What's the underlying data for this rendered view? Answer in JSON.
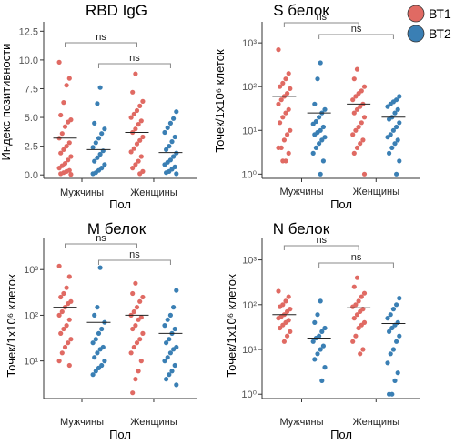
{
  "legend": [
    {
      "label": "ВТ1",
      "color": "#e06a63"
    },
    {
      "label": "ВТ2",
      "color": "#3a7fb4"
    }
  ],
  "chart_data": [
    {
      "type": "scatter",
      "title": "RBD IgG",
      "ylabel": "Индекс позитивности",
      "xlabel": "Пол",
      "yscale": "linear",
      "ylim": [
        -0.3,
        13
      ],
      "yticks": [
        0.0,
        2.5,
        5.0,
        7.5,
        10.0,
        12.5
      ],
      "ytick_labels": [
        "0.0",
        "2.5",
        "5.0",
        "7.5",
        "10.0",
        "12.5"
      ],
      "categories": [
        "Мужчины",
        "Женщины"
      ],
      "series": [
        {
          "name": "ВТ1",
          "values": [
            [
              9.8,
              8.4,
              7.8,
              6.3,
              5.2,
              4.8,
              4.6,
              4.2,
              3.6,
              3.2,
              2.8,
              2.5,
              2.2,
              1.9,
              1.6,
              1.3,
              1.0,
              0.8,
              0.6,
              0.4,
              0.3,
              0.2,
              0.1,
              0.05
            ],
            [
              8.8,
              7.2,
              6.4,
              6.0,
              5.6,
              5.3,
              5.0,
              4.7,
              4.4,
              4.0,
              3.7,
              3.3,
              3.0,
              2.7,
              2.3,
              2.0,
              1.6,
              1.2,
              0.9,
              0.6,
              0.3,
              0.1
            ]
          ]
        },
        {
          "name": "ВТ2",
          "values": [
            [
              7.6,
              6.2,
              4.5,
              4.0,
              3.6,
              3.2,
              2.8,
              2.4,
              2.1,
              1.8,
              1.5,
              1.2,
              0.9,
              0.6,
              0.4,
              0.2,
              0.1
            ],
            [
              5.5,
              4.9,
              4.5,
              4.1,
              3.7,
              3.3,
              2.9,
              2.5,
              2.2,
              1.9,
              1.6,
              1.3,
              1.1,
              0.9,
              0.7,
              0.5,
              0.3,
              0.2,
              0.1
            ]
          ]
        }
      ],
      "medians": [
        [
          3.2,
          2.2
        ],
        [
          3.7,
          1.95
        ]
      ],
      "annotations": [
        "ns",
        "ns"
      ]
    },
    {
      "type": "scatter",
      "title": "S белок",
      "ylabel": "Точек/1x10⁶ клеток",
      "xlabel": "Пол",
      "yscale": "log",
      "ylim": [
        0.8,
        2500
      ],
      "yticks": [
        1,
        10,
        100,
        1000
      ],
      "ytick_labels": [
        "10⁰",
        "10¹",
        "10²",
        "10³"
      ],
      "categories": [
        "Мужчины",
        "Женщины"
      ],
      "series": [
        {
          "name": "ВТ1",
          "values": [
            [
              700,
              200,
              150,
              120,
              100,
              90,
              70,
              60,
              50,
              40,
              30,
              25,
              20,
              15,
              10,
              8,
              6,
              4,
              4,
              3,
              2,
              2
            ],
            [
              250,
              150,
              100,
              80,
              70,
              60,
              50,
              40,
              35,
              30,
              25,
              20,
              15,
              12,
              10,
              8,
              6,
              5,
              4,
              3,
              1
            ]
          ]
        },
        {
          "name": "ВТ2",
          "values": [
            [
              350,
              150,
              40,
              30,
              25,
              20,
              16,
              14,
              12,
              10,
              9,
              8,
              7,
              6,
              5,
              4,
              3,
              2,
              1
            ],
            [
              60,
              50,
              45,
              40,
              35,
              30,
              25,
              20,
              18,
              15,
              12,
              10,
              8,
              7,
              6,
              5,
              4,
              3,
              2,
              1
            ]
          ]
        }
      ],
      "medians": [
        [
          60,
          25
        ],
        [
          40,
          20
        ]
      ],
      "annotations": [
        "ns",
        "ns"
      ]
    },
    {
      "type": "scatter",
      "title": "M белок",
      "ylabel": "Точек/1x10⁶ клеток",
      "xlabel": "Пол",
      "yscale": "log",
      "ylim": [
        1.5,
        4000
      ],
      "yticks": [
        10,
        100,
        1000
      ],
      "ytick_labels": [
        "10¹",
        "10²",
        "10³"
      ],
      "categories": [
        "Мужчины",
        "Женщины"
      ],
      "series": [
        {
          "name": "ВТ1",
          "values": [
            [
              1200,
              700,
              400,
              300,
              250,
              200,
              180,
              150,
              120,
              100,
              80,
              60,
              50,
              40,
              30,
              25,
              20,
              15,
              10,
              8
            ],
            [
              500,
              300,
              250,
              200,
              150,
              120,
              100,
              90,
              80,
              60,
              50,
              40,
              30,
              25,
              20,
              15,
              10,
              6,
              4,
              2
            ]
          ]
        },
        {
          "name": "ВТ2",
          "values": [
            [
              1100,
              150,
              100,
              70,
              50,
              40,
              30,
              25,
              20,
              18,
              15,
              12,
              10,
              8,
              7,
              6,
              5
            ],
            [
              350,
              150,
              100,
              80,
              60,
              50,
              40,
              30,
              25,
              20,
              18,
              15,
              12,
              10,
              8,
              6,
              5,
              4,
              3
            ]
          ]
        }
      ],
      "medians": [
        [
          150,
          70
        ],
        [
          100,
          40
        ]
      ],
      "annotations": [
        "ns",
        "ns"
      ]
    },
    {
      "type": "scatter",
      "title": "N белок",
      "ylabel": "Точек/1x10⁶ клеток",
      "xlabel": "Пол",
      "yscale": "log",
      "ylim": [
        0.8,
        2500
      ],
      "yticks": [
        1,
        10,
        100,
        1000
      ],
      "ytick_labels": [
        "10⁰",
        "10¹",
        "10²",
        "10³"
      ],
      "categories": [
        "Мужчины",
        "Женщины"
      ],
      "series": [
        {
          "name": "ВТ1",
          "values": [
            [
              200,
              150,
              120,
              100,
              90,
              80,
              70,
              60,
              55,
              50,
              45,
              40,
              35,
              30,
              25,
              20,
              15
            ],
            [
              400,
              250,
              180,
              150,
              120,
              100,
              90,
              80,
              70,
              60,
              50,
              40,
              35,
              30,
              20,
              15,
              10,
              8
            ]
          ]
        },
        {
          "name": "ВТ2",
          "values": [
            [
              120,
              60,
              40,
              30,
              25,
              20,
              18,
              15,
              12,
              10,
              8,
              6,
              4,
              2
            ],
            [
              140,
              100,
              80,
              60,
              50,
              40,
              35,
              30,
              25,
              20,
              15,
              10,
              8,
              5,
              3,
              2,
              1,
              1
            ]
          ]
        }
      ],
      "medians": [
        [
          60,
          18
        ],
        [
          85,
          38
        ]
      ],
      "annotations": [
        "ns",
        "ns"
      ]
    }
  ]
}
